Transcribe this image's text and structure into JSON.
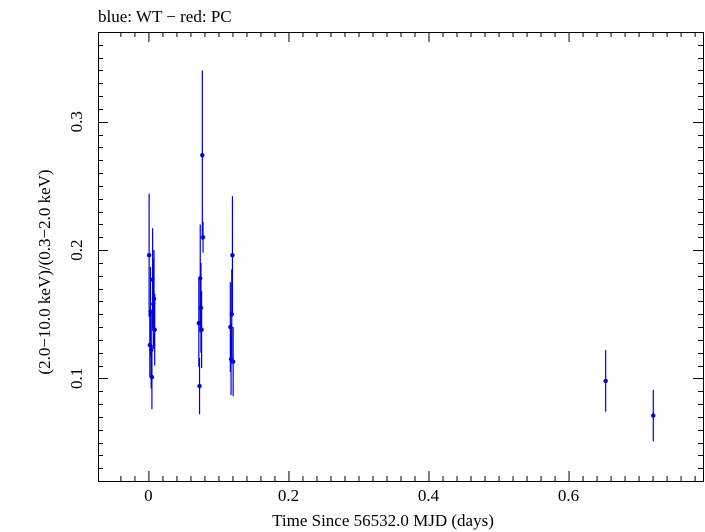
{
  "chart_data": {
    "type": "scatter",
    "title": "blue: WT − red: PC",
    "xlabel": "Time Since 56532.0 MJD (days)",
    "ylabel": "(2.0−10.0 keV)/(0.3−2.0 keV)",
    "xlim": [
      -0.072,
      0.792
    ],
    "ylim": [
      0.02,
      0.37
    ],
    "xticks": [
      0,
      0.2,
      0.4,
      0.6
    ],
    "xtick_labels": [
      "0",
      "0.2",
      "0.4",
      "0.6"
    ],
    "yticks": [
      0.1,
      0.2,
      0.3
    ],
    "ytick_labels": [
      "0.1",
      "0.2",
      "0.3"
    ],
    "grid": false,
    "series": [
      {
        "name": "WT",
        "color": "#0000dd",
        "points": [
          {
            "x": 0.001,
            "y": 0.196,
            "err": 0.048
          },
          {
            "x": 0.002,
            "y": 0.126,
            "err": 0.025
          },
          {
            "x": 0.003,
            "y": 0.152,
            "err": 0.035
          },
          {
            "x": 0.004,
            "y": 0.122,
            "err": 0.03
          },
          {
            "x": 0.005,
            "y": 0.101,
            "err": 0.025
          },
          {
            "x": 0.006,
            "y": 0.177,
            "err": 0.04
          },
          {
            "x": 0.007,
            "y": 0.158,
            "err": 0.035
          },
          {
            "x": 0.008,
            "y": 0.162,
            "err": 0.038
          },
          {
            "x": 0.009,
            "y": 0.138,
            "err": 0.028
          },
          {
            "x": 0.072,
            "y": 0.143,
            "err": 0.034
          },
          {
            "x": 0.073,
            "y": 0.094,
            "err": 0.022
          },
          {
            "x": 0.074,
            "y": 0.178,
            "err": 0.042
          },
          {
            "x": 0.075,
            "y": 0.155,
            "err": 0.035
          },
          {
            "x": 0.076,
            "y": 0.138,
            "err": 0.03
          },
          {
            "x": 0.077,
            "y": 0.274,
            "err": 0.066
          },
          {
            "x": 0.078,
            "y": 0.21,
            "err": 0.012
          },
          {
            "x": 0.117,
            "y": 0.14,
            "err": 0.035
          },
          {
            "x": 0.118,
            "y": 0.115,
            "err": 0.028
          },
          {
            "x": 0.119,
            "y": 0.15,
            "err": 0.035
          },
          {
            "x": 0.12,
            "y": 0.196,
            "err": 0.046
          },
          {
            "x": 0.121,
            "y": 0.113,
            "err": 0.027
          },
          {
            "x": 0.653,
            "y": 0.098,
            "err": 0.024
          },
          {
            "x": 0.721,
            "y": 0.071,
            "err": 0.02
          }
        ]
      }
    ]
  }
}
